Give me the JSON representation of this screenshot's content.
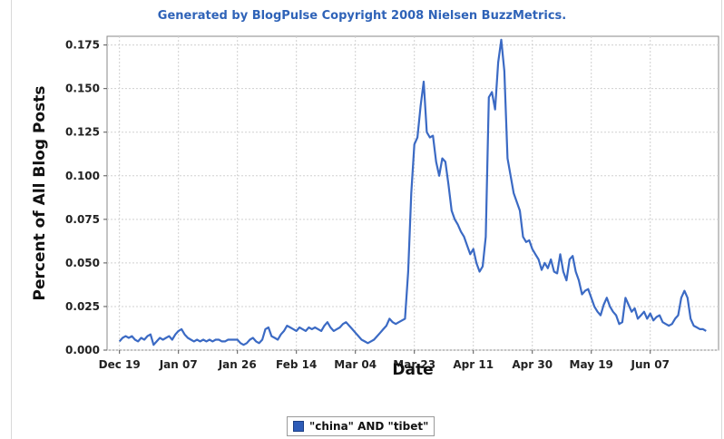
{
  "credit": "Generated by BlogPulse Copyright 2008 Nielsen BuzzMetrics.",
  "colors": {
    "series": "#3b6ac4",
    "credit": "#2f63b8",
    "grid": "#d0d0d0"
  },
  "chart_data": {
    "type": "line",
    "title": "",
    "xlabel": "Date",
    "ylabel": "Percent of All Blog Posts",
    "ylim": [
      0,
      0.18
    ],
    "yticks": [
      "0.000",
      "0.025",
      "0.050",
      "0.075",
      "0.100",
      "0.125",
      "0.150",
      "0.175"
    ],
    "xtick_labels": [
      "Dec 19",
      "Jan 07",
      "Jan 26",
      "Feb 14",
      "Mar 04",
      "Mar 23",
      "Apr 11",
      "Apr 30",
      "May 19",
      "Jun 07"
    ],
    "grid": true,
    "legend_position": "bottom-center",
    "series": [
      {
        "name": "\"china\" AND \"tibet\"",
        "x_days_from_dec19": [
          0,
          1,
          2,
          3,
          4,
          5,
          6,
          7,
          8,
          9,
          10,
          11,
          12,
          13,
          14,
          15,
          16,
          17,
          18,
          19,
          20,
          21,
          22,
          23,
          24,
          25,
          26,
          27,
          28,
          29,
          30,
          31,
          32,
          33,
          34,
          35,
          36,
          37,
          38,
          39,
          40,
          41,
          42,
          43,
          44,
          45,
          46,
          47,
          48,
          49,
          50,
          51,
          52,
          53,
          54,
          55,
          56,
          57,
          58,
          59,
          60,
          61,
          62,
          63,
          64,
          65,
          66,
          67,
          68,
          69,
          70,
          71,
          72,
          73,
          74,
          75,
          76,
          77,
          78,
          79,
          80,
          81,
          82,
          83,
          84,
          85,
          86,
          87,
          88,
          89,
          90,
          91,
          92,
          93,
          94,
          95,
          96,
          97,
          98,
          99,
          100,
          101,
          102,
          103,
          104,
          105,
          106,
          107,
          108,
          109,
          110,
          111,
          112,
          113,
          114,
          115,
          116,
          117,
          118,
          119,
          120,
          121,
          122,
          123,
          124,
          125,
          126,
          127,
          128,
          129,
          130,
          131,
          132,
          133,
          134,
          135,
          136,
          137,
          138,
          139,
          140,
          141,
          142,
          143,
          144,
          145,
          146,
          147,
          148,
          149,
          150,
          151,
          152,
          153,
          154,
          155,
          156,
          157,
          158,
          159,
          160,
          161,
          162,
          163,
          164,
          165,
          166,
          167,
          168,
          169,
          170,
          171,
          172,
          173,
          174,
          175,
          176,
          177,
          178,
          179,
          180,
          181,
          182,
          183,
          184,
          185,
          186,
          187,
          188,
          189
        ],
        "values": [
          0.005,
          0.007,
          0.008,
          0.007,
          0.008,
          0.006,
          0.005,
          0.007,
          0.006,
          0.008,
          0.009,
          0.003,
          0.005,
          0.007,
          0.006,
          0.007,
          0.008,
          0.006,
          0.009,
          0.011,
          0.012,
          0.009,
          0.007,
          0.006,
          0.005,
          0.006,
          0.005,
          0.006,
          0.005,
          0.006,
          0.005,
          0.006,
          0.006,
          0.005,
          0.005,
          0.006,
          0.006,
          0.006,
          0.006,
          0.004,
          0.003,
          0.004,
          0.006,
          0.007,
          0.005,
          0.004,
          0.006,
          0.012,
          0.013,
          0.008,
          0.007,
          0.006,
          0.009,
          0.011,
          0.014,
          0.013,
          0.012,
          0.011,
          0.013,
          0.012,
          0.011,
          0.013,
          0.012,
          0.013,
          0.012,
          0.011,
          0.014,
          0.016,
          0.013,
          0.011,
          0.012,
          0.013,
          0.015,
          0.016,
          0.014,
          0.012,
          0.01,
          0.008,
          0.006,
          0.005,
          0.004,
          0.005,
          0.006,
          0.008,
          0.01,
          0.012,
          0.014,
          0.018,
          0.016,
          0.015,
          0.016,
          0.017,
          0.018,
          0.045,
          0.09,
          0.118,
          0.122,
          0.14,
          0.154,
          0.125,
          0.122,
          0.123,
          0.108,
          0.1,
          0.11,
          0.108,
          0.095,
          0.08,
          0.075,
          0.072,
          0.068,
          0.065,
          0.06,
          0.055,
          0.058,
          0.05,
          0.045,
          0.048,
          0.065,
          0.145,
          0.148,
          0.138,
          0.165,
          0.178,
          0.16,
          0.11,
          0.1,
          0.09,
          0.085,
          0.08,
          0.065,
          0.062,
          0.063,
          0.058,
          0.055,
          0.052,
          0.046,
          0.05,
          0.047,
          0.052,
          0.045,
          0.044,
          0.055,
          0.045,
          0.04,
          0.052,
          0.054,
          0.045,
          0.04,
          0.032,
          0.034,
          0.035,
          0.03,
          0.025,
          0.022,
          0.02,
          0.026,
          0.03,
          0.025,
          0.022,
          0.02,
          0.015,
          0.016,
          0.03,
          0.026,
          0.022,
          0.024,
          0.018,
          0.02,
          0.022,
          0.018,
          0.021,
          0.017,
          0.019,
          0.02,
          0.016,
          0.015,
          0.014,
          0.015,
          0.018,
          0.02,
          0.03,
          0.034,
          0.03,
          0.018,
          0.014,
          0.013,
          0.012,
          0.012,
          0.011,
          0.01,
          0.009
        ]
      }
    ]
  }
}
